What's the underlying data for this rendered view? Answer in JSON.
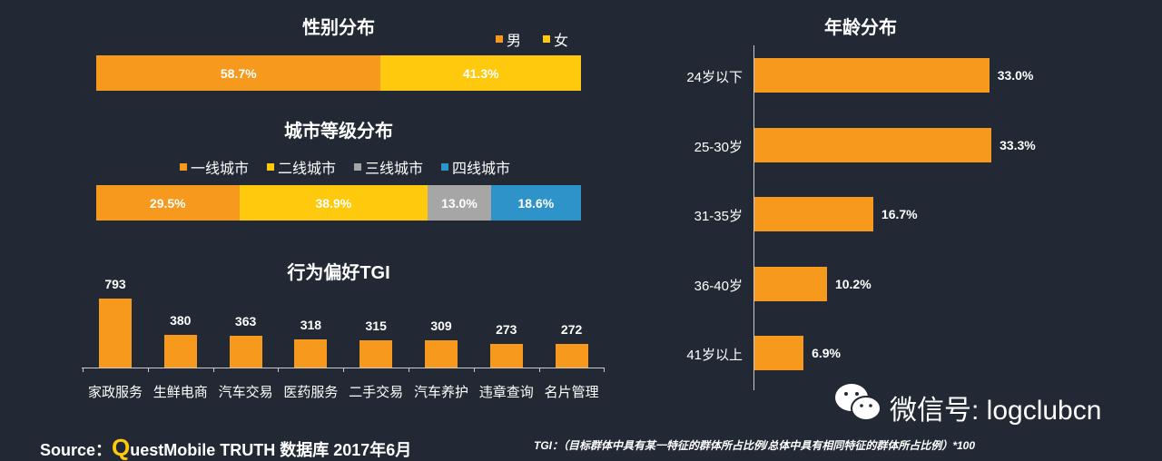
{
  "colors": {
    "orange": "#f7991c",
    "yellow": "#ffc90e",
    "gray": "#a6a6a6",
    "blue": "#2e93c9",
    "background": "#222934"
  },
  "chart_data": [
    {
      "type": "bar",
      "orientation": "horizontal-stacked",
      "title": "性别分布",
      "categories": [
        ""
      ],
      "series": [
        {
          "name": "男",
          "values": [
            58.7
          ],
          "label": "58.7%"
        },
        {
          "name": "女",
          "values": [
            41.3
          ],
          "label": "41.3%"
        }
      ],
      "legend": "top-right"
    },
    {
      "type": "bar",
      "orientation": "horizontal-stacked",
      "title": "城市等级分布",
      "categories": [
        ""
      ],
      "series": [
        {
          "name": "一线城市",
          "values": [
            29.5
          ],
          "label": "29.5%"
        },
        {
          "name": "二线城市",
          "values": [
            38.9
          ],
          "label": "38.9%"
        },
        {
          "name": "三线城市",
          "values": [
            13.0
          ],
          "label": "13.0%"
        },
        {
          "name": "四线城市",
          "values": [
            18.6
          ],
          "label": "18.6%"
        }
      ],
      "legend": "top"
    },
    {
      "type": "bar",
      "title": "行为偏好TGI",
      "categories": [
        "家政服务",
        "生鲜电商",
        "汽车交易",
        "医药服务",
        "二手交易",
        "汽车养护",
        "违章查询",
        "名片管理"
      ],
      "values": [
        793,
        380,
        363,
        318,
        315,
        309,
        273,
        272
      ],
      "labels": [
        "793",
        "380",
        "363",
        "318",
        "315",
        "309",
        "273",
        "272"
      ]
    },
    {
      "type": "bar",
      "orientation": "horizontal",
      "title": "年龄分布",
      "categories": [
        "24岁以下",
        "25-30岁",
        "31-35岁",
        "36-40岁",
        "41岁以上"
      ],
      "values": [
        33.0,
        33.3,
        16.7,
        10.2,
        6.9
      ],
      "labels": [
        "33.0%",
        "33.3%",
        "16.7%",
        "10.2%",
        "6.9%"
      ]
    }
  ],
  "footer": {
    "source_prefix": "Source：",
    "q": "Q",
    "source_rest": "uestMobile TRUTH 数据库 2017年6月",
    "tgi_note": "TGI：（目标群体中具有某一特征的群体所占比例/总体中具有相同特征的群体所占比例）*100"
  },
  "watermark": {
    "text": "微信号: logclubcn",
    "icon": "wechat-icon"
  }
}
